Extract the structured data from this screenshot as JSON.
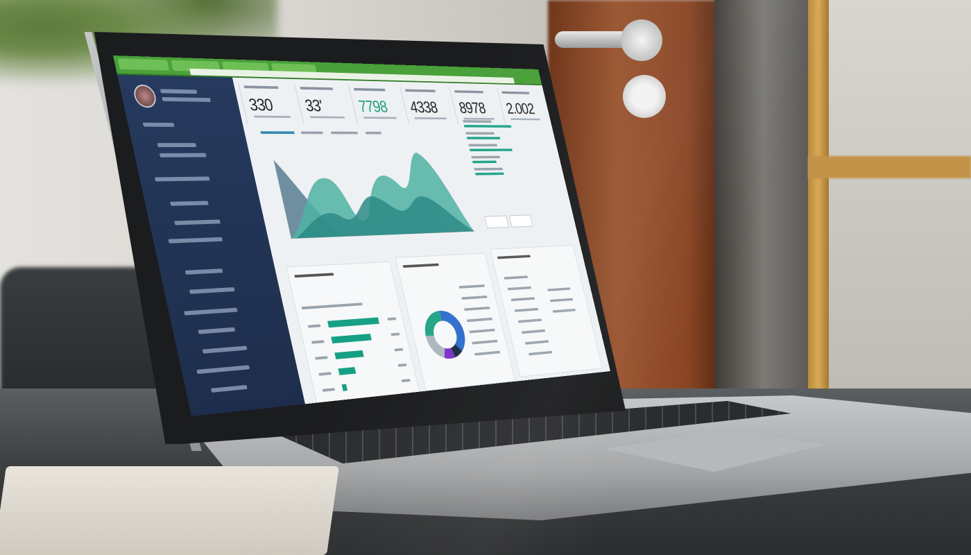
{
  "scene": "laptop-on-table",
  "dashboard": {
    "accent_color": "#4aa03a",
    "sidebar_color": "#243659",
    "kpis": [
      {
        "value": "330"
      },
      {
        "value": "33'"
      },
      {
        "value": "7798",
        "color": "#1f9e7e"
      },
      {
        "value": "4338"
      },
      {
        "value": "8978"
      },
      {
        "value": "2.002"
      }
    ],
    "area_chart": {
      "series_colors": [
        "#6f8fa0",
        "#4fb3a2",
        "#2c8a86"
      ]
    },
    "bar_chart": {
      "fractions": [
        0.62,
        0.48,
        0.34,
        0.2,
        0.05
      ]
    },
    "donut": {
      "segments": [
        {
          "fraction": 0.38,
          "color": "#2e6fcc"
        },
        {
          "fraction": 0.08,
          "color": "#1d2b44"
        },
        {
          "fraction": 0.09,
          "color": "#7b2fc9"
        },
        {
          "fraction": 0.2,
          "color": "#aeb7be"
        },
        {
          "fraction": 0.25,
          "color": "#22a586"
        }
      ]
    }
  }
}
